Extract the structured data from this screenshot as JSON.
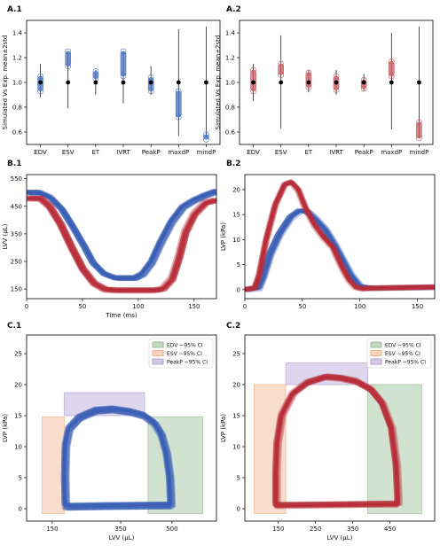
{
  "chart_data": [
    {
      "panel": "A.1",
      "type": "scatter",
      "ylabel": "Simulated Vs Exp. mean±2std",
      "categories": [
        "EDV",
        "ESV",
        "ET",
        "IVRT",
        "PeakP",
        "maxdP",
        "mindP"
      ],
      "ylim": [
        0.5,
        1.5
      ],
      "yticks": [
        "0.6",
        "0.8",
        "1.0",
        "1.2",
        "1.4"
      ],
      "series_color": "#4a72c4",
      "whisker_low": [
        0.88,
        0.79,
        0.9,
        0.83,
        0.9,
        0.57,
        0.56
      ],
      "whisker_high": [
        1.15,
        1.25,
        1.1,
        1.25,
        1.13,
        1.43,
        1.45
      ],
      "sim_min": [
        0.93,
        1.13,
        1.03,
        1.05,
        0.93,
        0.72,
        0.54
      ],
      "sim_max": [
        1.05,
        1.25,
        1.09,
        1.25,
        1.04,
        0.93,
        0.58
      ],
      "exp_mean": [
        1.0,
        1.0,
        1.0,
        1.0,
        1.0,
        1.0,
        1.0
      ]
    },
    {
      "panel": "A.2",
      "type": "scatter",
      "ylabel": "Simulated Vs Exp. mean±2std",
      "categories": [
        "EDV",
        "ESV",
        "ET",
        "IVRT",
        "PeakP",
        "maxdP",
        "mindP"
      ],
      "ylim": [
        0.5,
        1.5
      ],
      "yticks": [
        "0.6",
        "0.8",
        "1.0",
        "1.2",
        "1.4"
      ],
      "series_color": "#c95c63",
      "whisker_low": [
        0.85,
        0.63,
        0.92,
        0.9,
        0.93,
        0.62,
        0.55
      ],
      "whisker_high": [
        1.15,
        1.38,
        1.1,
        1.1,
        1.07,
        1.4,
        1.45
      ],
      "sim_min": [
        0.93,
        1.06,
        0.96,
        0.94,
        0.95,
        1.05,
        0.55
      ],
      "sim_max": [
        1.1,
        1.15,
        1.08,
        1.05,
        1.02,
        1.17,
        0.68
      ],
      "exp_mean": [
        1.0,
        1.0,
        1.0,
        1.0,
        1.0,
        1.0,
        1.0
      ]
    },
    {
      "panel": "B.1",
      "type": "line",
      "xlabel": "Time (ms)",
      "ylabel": "LVV (μL)",
      "xlim": [
        0,
        170
      ],
      "ylim": [
        115,
        565
      ],
      "xticks": [
        "0",
        "50",
        "100",
        "150"
      ],
      "yticks": [
        "150",
        "250",
        "350",
        "450",
        "550"
      ],
      "series": [
        {
          "color": "#3a5fb5",
          "x": [
            0,
            12,
            22,
            32,
            42,
            52,
            60,
            70,
            80,
            90,
            97,
            104,
            112,
            120,
            130,
            140,
            150,
            160,
            170
          ],
          "y": [
            500,
            500,
            482,
            440,
            375,
            305,
            245,
            205,
            190,
            190,
            190,
            205,
            248,
            318,
            395,
            448,
            472,
            490,
            505
          ]
        },
        {
          "color": "#b82e3a",
          "x": [
            0,
            12,
            20,
            30,
            40,
            50,
            60,
            70,
            80,
            100,
            115,
            122,
            130,
            136,
            142,
            150,
            160,
            170
          ],
          "y": [
            478,
            478,
            450,
            385,
            300,
            222,
            170,
            148,
            145,
            145,
            145,
            150,
            185,
            260,
            355,
            420,
            462,
            472
          ]
        }
      ]
    },
    {
      "panel": "B.2",
      "type": "line",
      "xlabel": "",
      "ylabel": "LVP (kPa)",
      "xlim": [
        0,
        165
      ],
      "ylim": [
        -1.8,
        23
      ],
      "xticks": [
        "0",
        "50",
        "100",
        "150"
      ],
      "yticks": [
        "0",
        "5",
        "10",
        "15",
        "20"
      ],
      "series": [
        {
          "color": "#3a5fb5",
          "x": [
            0,
            12,
            16,
            22,
            30,
            40,
            48,
            55,
            62,
            70,
            78,
            85,
            92,
            100,
            110,
            165
          ],
          "y": [
            0,
            0.3,
            2.5,
            7,
            11,
            14.5,
            15.8,
            15.5,
            14,
            12,
            9,
            6,
            3,
            0.7,
            0.3,
            0.5
          ]
        },
        {
          "color": "#b82e3a",
          "x": [
            0,
            8,
            12,
            18,
            26,
            34,
            40,
            46,
            52,
            60,
            68,
            76,
            84,
            90,
            96,
            102,
            112,
            165
          ],
          "y": [
            0,
            0.3,
            3,
            10,
            17,
            21,
            21.5,
            20,
            16.5,
            13,
            10.5,
            8.5,
            4.5,
            2,
            0.5,
            0.2,
            0.3,
            0.5
          ]
        }
      ]
    },
    {
      "panel": "C.1",
      "type": "line",
      "xlabel": "LVV (μL)",
      "ylabel": "LVP (kPa)",
      "xlim": [
        75,
        630
      ],
      "ylim": [
        -2,
        28
      ],
      "xticks": [
        "150",
        "350",
        "500"
      ],
      "yticks": [
        "0",
        "5",
        "10",
        "15",
        "20",
        "25"
      ],
      "legend": {
        "position": "top-right",
        "entries": [
          {
            "label": "EDV ~95% CI",
            "color": "#9cbf96"
          },
          {
            "label": "ESV ~95% CI",
            "color": "#f2b48f"
          },
          {
            "label": "PeakP ~95% CI",
            "color": "#b5a5d6"
          }
        ]
      },
      "bands": [
        {
          "x0": 430,
          "x1": 590,
          "y0": -0.8,
          "y1": 14.8,
          "color": "#9cbf96"
        },
        {
          "x0": 120,
          "x1": 185,
          "y0": -0.8,
          "y1": 14.8,
          "color": "#f2b48f"
        },
        {
          "x0": 185,
          "x1": 420,
          "y0": 15,
          "y1": 18.7,
          "color": "#b5a5d6"
        }
      ],
      "series": [
        {
          "color": "#3a5fb5",
          "x": [
            190,
            188,
            190,
            200,
            230,
            280,
            330,
            380,
            420,
            450,
            470,
            485,
            495,
            498,
            498,
            470,
            300,
            190
          ],
          "y": [
            0.3,
            5,
            10,
            12.8,
            14.6,
            15.8,
            16.0,
            15.6,
            15.0,
            13.8,
            12.0,
            9.0,
            5.0,
            1.0,
            0.5,
            0.5,
            0.4,
            0.3
          ]
        }
      ]
    },
    {
      "panel": "C.2",
      "type": "line",
      "xlabel": "LVV (μL)",
      "ylabel": "LVP (kPa)",
      "xlim": [
        60,
        570
      ],
      "ylim": [
        -2,
        28
      ],
      "xticks": [
        "150",
        "250",
        "350",
        "450"
      ],
      "yticks": [
        "0",
        "5",
        "10",
        "15",
        "20",
        "25"
      ],
      "legend": {
        "position": "top-right",
        "entries": [
          {
            "label": "EDV ~95% CI",
            "color": "#9cbf96"
          },
          {
            "label": "ESV ~95% CI",
            "color": "#f2b48f"
          },
          {
            "label": "PeakP ~95% CI",
            "color": "#b5a5d6"
          }
        ]
      },
      "bands": [
        {
          "x0": 390,
          "x1": 535,
          "y0": -0.8,
          "y1": 20,
          "color": "#9cbf96"
        },
        {
          "x0": 85,
          "x1": 170,
          "y0": -0.8,
          "y1": 20,
          "color": "#f2b48f"
        },
        {
          "x0": 170,
          "x1": 390,
          "y0": 20,
          "y1": 23.5,
          "color": "#b5a5d6"
        }
      ],
      "series": [
        {
          "color": "#b82e3a",
          "x": [
            145,
            145,
            148,
            160,
            190,
            230,
            280,
            320,
            360,
            400,
            430,
            455,
            468,
            472,
            472,
            440,
            300,
            145
          ],
          "y": [
            0.5,
            6,
            10.5,
            15,
            18.5,
            20.3,
            21.2,
            21.0,
            20.5,
            19.2,
            17.0,
            13.0,
            7.0,
            2.0,
            0.7,
            0.7,
            0.6,
            0.5
          ]
        }
      ]
    }
  ]
}
